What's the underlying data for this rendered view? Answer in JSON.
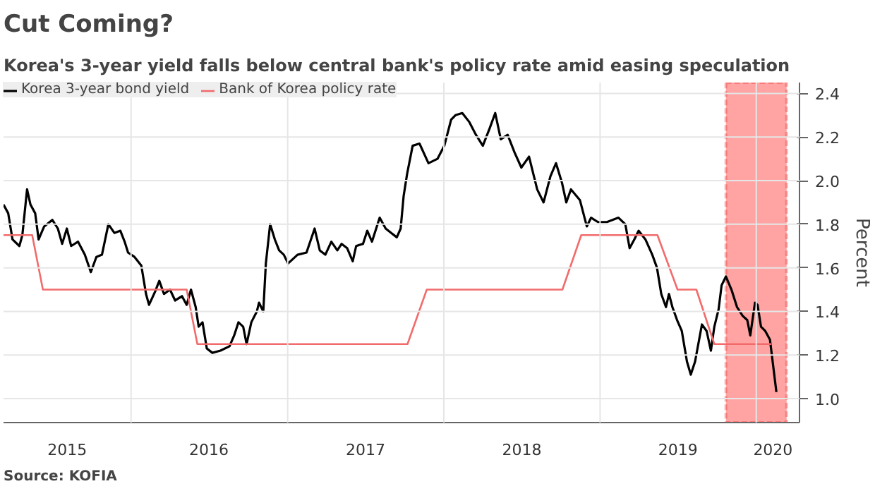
{
  "chart_data": {
    "type": "line",
    "title": "Cut Coming?",
    "subtitle": "Korea's 3-year yield falls below central bank's policy rate amid easing speculation",
    "ylabel": "Percent",
    "annotations": [
      "Source: KOFIA"
    ],
    "series": [
      {
        "name": "Korea 3-year bond yield",
        "color": "#000000",
        "x": [
          "2015-03-09",
          "2015-03-20",
          "2015-03-30",
          "2015-04-15",
          "2015-04-22",
          "2015-05-03",
          "2015-05-11",
          "2015-05-22",
          "2015-05-30",
          "2015-06-12",
          "2015-07-01",
          "2015-07-14",
          "2015-07-24",
          "2015-08-04",
          "2015-08-14",
          "2015-08-30",
          "2015-09-15",
          "2015-09-29",
          "2015-10-12",
          "2015-10-25",
          "2015-11-09",
          "2015-11-23",
          "2015-12-07",
          "2015-12-17",
          "2015-12-25",
          "2016-01-09",
          "2016-01-25",
          "2016-02-05",
          "2016-02-12",
          "2016-02-26",
          "2016-03-07",
          "2016-03-18",
          "2016-04-01",
          "2016-04-13",
          "2016-04-29",
          "2016-05-10",
          "2016-05-20",
          "2016-05-31",
          "2016-06-07",
          "2016-06-16",
          "2016-06-26",
          "2016-07-09",
          "2016-07-28",
          "2016-08-18",
          "2016-08-29",
          "2016-09-08",
          "2016-09-19",
          "2016-09-27",
          "2016-10-08",
          "2016-10-21",
          "2016-10-26",
          "2016-11-05",
          "2016-11-11",
          "2016-11-21",
          "2016-12-02",
          "2016-12-12",
          "2016-12-23",
          "2017-01-02",
          "2017-01-24",
          "2017-02-14",
          "2017-03-05",
          "2017-03-17",
          "2017-03-30",
          "2017-04-13",
          "2017-04-27",
          "2017-05-07",
          "2017-05-20",
          "2017-06-02",
          "2017-06-10",
          "2017-06-26",
          "2017-07-06",
          "2017-07-17",
          "2017-08-04",
          "2017-08-18",
          "2017-08-31",
          "2017-09-13",
          "2017-09-22",
          "2017-09-29",
          "2017-10-07",
          "2017-10-20",
          "2017-11-05",
          "2017-11-26",
          "2017-12-17",
          "2018-01-02",
          "2018-01-18",
          "2018-01-28",
          "2018-02-13",
          "2018-03-01",
          "2018-03-17",
          "2018-04-02",
          "2018-04-18",
          "2018-05-01",
          "2018-05-14",
          "2018-05-30",
          "2018-06-15",
          "2018-07-01",
          "2018-07-19",
          "2018-08-07",
          "2018-08-22",
          "2018-09-07",
          "2018-09-20",
          "2018-10-04",
          "2018-10-14",
          "2018-10-25",
          "2018-11-15",
          "2018-12-01",
          "2018-12-11",
          "2018-12-27",
          "2019-01-17",
          "2019-02-13",
          "2019-03-01",
          "2019-03-11",
          "2019-03-22",
          "2019-04-01",
          "2019-04-17",
          "2019-05-03",
          "2019-05-14",
          "2019-05-24",
          "2019-06-04",
          "2019-06-11",
          "2019-06-19",
          "2019-06-30",
          "2019-07-11",
          "2019-07-23",
          "2019-08-01",
          "2019-08-11",
          "2019-08-27",
          "2019-09-07",
          "2019-09-17",
          "2019-09-25",
          "2019-10-05",
          "2019-10-12",
          "2019-10-22",
          "2019-11-04",
          "2019-11-17",
          "2019-11-30",
          "2019-12-11",
          "2019-12-18",
          "2019-12-29",
          "2020-01-04",
          "2020-01-12",
          "2020-01-22",
          "2020-02-02",
          "2020-02-07",
          "2020-02-17"
        ],
        "values": [
          1.89,
          1.85,
          1.73,
          1.7,
          1.75,
          1.96,
          1.89,
          1.85,
          1.73,
          1.79,
          1.82,
          1.78,
          1.71,
          1.78,
          1.7,
          1.72,
          1.66,
          1.58,
          1.65,
          1.66,
          1.8,
          1.76,
          1.77,
          1.72,
          1.67,
          1.65,
          1.61,
          1.48,
          1.43,
          1.49,
          1.54,
          1.48,
          1.5,
          1.45,
          1.47,
          1.43,
          1.5,
          1.42,
          1.33,
          1.35,
          1.23,
          1.21,
          1.22,
          1.24,
          1.29,
          1.35,
          1.33,
          1.25,
          1.35,
          1.4,
          1.44,
          1.4,
          1.62,
          1.8,
          1.73,
          1.68,
          1.66,
          1.62,
          1.66,
          1.67,
          1.78,
          1.68,
          1.66,
          1.72,
          1.68,
          1.71,
          1.69,
          1.63,
          1.7,
          1.71,
          1.77,
          1.72,
          1.83,
          1.78,
          1.76,
          1.74,
          1.78,
          1.93,
          2.03,
          2.16,
          2.17,
          2.08,
          2.1,
          2.16,
          2.28,
          2.3,
          2.31,
          2.27,
          2.21,
          2.16,
          2.24,
          2.31,
          2.19,
          2.21,
          2.13,
          2.06,
          2.11,
          1.96,
          1.9,
          2.02,
          2.08,
          1.99,
          1.9,
          1.96,
          1.91,
          1.79,
          1.83,
          1.81,
          1.81,
          1.83,
          1.8,
          1.69,
          1.73,
          1.77,
          1.73,
          1.66,
          1.6,
          1.48,
          1.42,
          1.48,
          1.42,
          1.36,
          1.31,
          1.17,
          1.11,
          1.17,
          1.34,
          1.31,
          1.22,
          1.33,
          1.41,
          1.52,
          1.56,
          1.5,
          1.42,
          1.38,
          1.36,
          1.29,
          1.44,
          1.43,
          1.33,
          1.31,
          1.27,
          1.19,
          1.03
        ]
      },
      {
        "name": "Bank of Korea policy rate",
        "color": "#f26b6b",
        "x": [
          "2015-03-09",
          "2015-05-15",
          "2015-06-09",
          "2016-05-10",
          "2016-06-04",
          "2017-10-08",
          "2017-11-22",
          "2018-10-05",
          "2018-11-18",
          "2019-05-15",
          "2019-07-01",
          "2019-08-14",
          "2019-09-25",
          "2020-02-05"
        ],
        "values": [
          1.75,
          1.75,
          1.5,
          1.5,
          1.25,
          1.25,
          1.5,
          1.5,
          1.75,
          1.75,
          1.5,
          1.5,
          1.25,
          1.25
        ]
      }
    ],
    "bands": [
      {
        "axis": "x",
        "from": "2019-10-22",
        "to": "2020-03-12",
        "color": "#ff6666"
      }
    ],
    "xlim": [
      "2015-03-09",
      "2020-04-11"
    ],
    "xticks": [
      {
        "value": "2016-01-01",
        "label": null
      },
      {
        "value": "2017-01-01",
        "label": null
      },
      {
        "value": "2018-01-01",
        "label": null
      },
      {
        "value": "2019-01-01",
        "label": null
      },
      {
        "value": "2020-01-01",
        "label": null
      },
      {
        "value": "2015-08-05",
        "label": "2015"
      },
      {
        "value": "2016-07-01",
        "label": "2016"
      },
      {
        "value": "2017-07-02",
        "label": "2017"
      },
      {
        "value": "2018-07-02",
        "label": "2018"
      },
      {
        "value": "2019-07-02",
        "label": "2019"
      },
      {
        "value": "2020-02-09",
        "label": "2020"
      }
    ],
    "ylim": [
      0.89,
      2.45
    ],
    "yticks": [
      {
        "value": 1.0,
        "label": "1.0"
      },
      {
        "value": 1.2,
        "label": "1.2"
      },
      {
        "value": 1.4,
        "label": "1.4"
      },
      {
        "value": 1.6,
        "label": "1.6"
      },
      {
        "value": 1.8,
        "label": "1.8"
      },
      {
        "value": 2.0,
        "label": "2.0"
      },
      {
        "value": 2.2,
        "label": "2.2"
      },
      {
        "value": 2.4,
        "label": "2.4"
      }
    ],
    "grid": true,
    "legend": "top left",
    "line_style": "solid",
    "marker": "none"
  }
}
